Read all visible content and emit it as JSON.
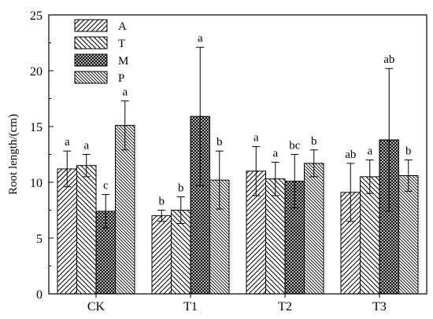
{
  "chart_data": {
    "type": "bar",
    "ylabel": "Root length/(cm)",
    "xlabel": "",
    "title": "",
    "ylim": [
      0,
      25
    ],
    "yticks": [
      0,
      5,
      10,
      15,
      20,
      25
    ],
    "grid": false,
    "legend_position": "top-left",
    "categories": [
      "CK",
      "T1",
      "T2",
      "T3"
    ],
    "series": [
      {
        "name": "A",
        "pattern": "hatch-right",
        "values": [
          11.2,
          7.0,
          11.0,
          9.1
        ],
        "errors": [
          1.6,
          0.5,
          2.2,
          2.6
        ],
        "labels": [
          "a",
          "b",
          "a",
          "ab"
        ]
      },
      {
        "name": "T",
        "pattern": "hatch-left",
        "values": [
          11.5,
          7.5,
          10.3,
          10.5
        ],
        "errors": [
          1.0,
          1.2,
          1.5,
          1.5
        ],
        "labels": [
          "a",
          "b",
          "a",
          "a"
        ]
      },
      {
        "name": "M",
        "pattern": "crosshatch",
        "values": [
          7.4,
          15.9,
          10.1,
          13.8
        ],
        "errors": [
          1.5,
          6.2,
          2.4,
          6.4
        ],
        "labels": [
          "c",
          "a",
          "bc",
          "ab"
        ]
      },
      {
        "name": "P",
        "pattern": "hatch-left-dense",
        "values": [
          15.1,
          10.2,
          11.7,
          10.6
        ],
        "errors": [
          2.2,
          2.6,
          1.2,
          1.4
        ],
        "labels": [
          "a",
          "b",
          "b",
          "b"
        ]
      }
    ]
  }
}
